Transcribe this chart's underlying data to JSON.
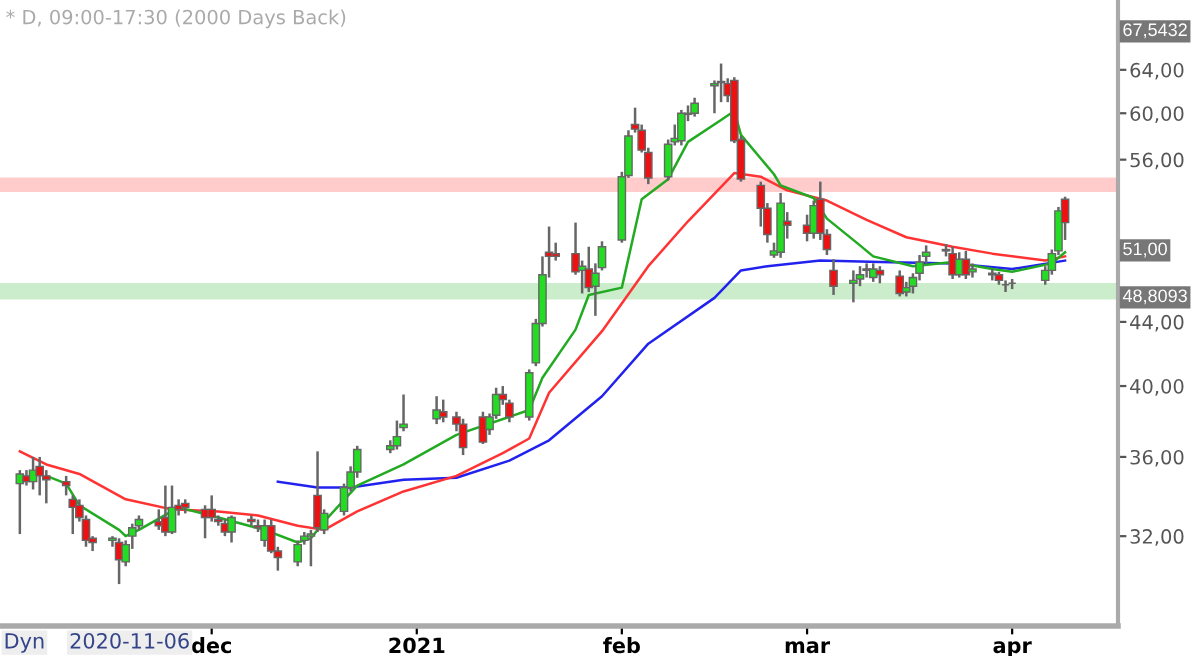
{
  "chart_data": {
    "type": "candlestick",
    "title": "* D, 09:00-17:30 (2000 Days Back)",
    "log": "y",
    "x": [
      "2020-11-02",
      "2020-11-03",
      "2020-11-04",
      "2020-11-05",
      "2020-11-06",
      "2020-11-09",
      "2020-11-10",
      "2020-11-11",
      "2020-11-12",
      "2020-11-13",
      "2020-11-16",
      "2020-11-17",
      "2020-11-18",
      "2020-11-19",
      "2020-11-20",
      "2020-11-23",
      "2020-11-24",
      "2020-11-25",
      "2020-11-26",
      "2020-11-27",
      "2020-11-30",
      "2020-12-01",
      "2020-12-02",
      "2020-12-03",
      "2020-12-04",
      "2020-12-07",
      "2020-12-08",
      "2020-12-09",
      "2020-12-10",
      "2020-12-11",
      "2020-12-14",
      "2020-12-15",
      "2020-12-16",
      "2020-12-17",
      "2020-12-18",
      "2020-12-21",
      "2020-12-22",
      "2020-12-23",
      "2020-12-28",
      "2020-12-29",
      "2020-12-30",
      "2021-01-04",
      "2021-01-05",
      "2021-01-07",
      "2021-01-08",
      "2021-01-11",
      "2021-01-12",
      "2021-01-13",
      "2021-01-14",
      "2021-01-15",
      "2021-01-18",
      "2021-01-19",
      "2021-01-20",
      "2021-01-21",
      "2021-01-22",
      "2021-01-25",
      "2021-01-26",
      "2021-01-27",
      "2021-01-28",
      "2021-01-29",
      "2021-02-01",
      "2021-02-02",
      "2021-02-03",
      "2021-02-04",
      "2021-02-05",
      "2021-02-08",
      "2021-02-09",
      "2021-02-10",
      "2021-02-11",
      "2021-02-12",
      "2021-02-15",
      "2021-02-16",
      "2021-02-17",
      "2021-02-18",
      "2021-02-19",
      "2021-02-22",
      "2021-02-23",
      "2021-02-24",
      "2021-02-25",
      "2021-02-26",
      "2021-03-01",
      "2021-03-02",
      "2021-03-03",
      "2021-03-04",
      "2021-03-05",
      "2021-03-08",
      "2021-03-09",
      "2021-03-10",
      "2021-03-11",
      "2021-03-12",
      "2021-03-15",
      "2021-03-16",
      "2021-03-17",
      "2021-03-18",
      "2021-03-19",
      "2021-03-22",
      "2021-03-23",
      "2021-03-24",
      "2021-03-25",
      "2021-03-26",
      "2021-03-29",
      "2021-03-30",
      "2021-03-31",
      "2021-04-01",
      "2021-04-06",
      "2021-04-07",
      "2021-04-08",
      "2021-04-09"
    ],
    "ohlc": [
      [
        34.6,
        35.3,
        32.1,
        35.1
      ],
      [
        35.0,
        35.3,
        34.5,
        34.7
      ],
      [
        34.7,
        36.0,
        34.3,
        35.3
      ],
      [
        35.5,
        36.0,
        34.0,
        35.0
      ],
      [
        35.0,
        35.3,
        33.6,
        34.8
      ],
      [
        34.7,
        35.0,
        34.0,
        34.5
      ],
      [
        33.8,
        34.0,
        32.1,
        33.4
      ],
      [
        33.5,
        33.8,
        32.7,
        32.9
      ],
      [
        32.8,
        33.0,
        31.5,
        31.8
      ],
      [
        31.9,
        32.0,
        31.3,
        31.7
      ],
      [
        31.8,
        32.0,
        31.5,
        31.9
      ],
      [
        31.7,
        31.9,
        29.8,
        30.9
      ],
      [
        30.8,
        31.8,
        30.6,
        31.6
      ],
      [
        32.0,
        32.6,
        31.4,
        32.4
      ],
      [
        32.5,
        33.0,
        32.3,
        32.8
      ],
      [
        32.7,
        33.3,
        32.3,
        32.5
      ],
      [
        32.9,
        34.5,
        32.0,
        32.2
      ],
      [
        32.2,
        34.5,
        32.1,
        33.4
      ],
      [
        33.5,
        33.8,
        33.0,
        33.3
      ],
      [
        33.6,
        33.8,
        33.1,
        33.4
      ],
      [
        33.3,
        33.5,
        31.9,
        32.9
      ],
      [
        33.3,
        34.0,
        32.7,
        32.9
      ],
      [
        32.8,
        33.0,
        32.5,
        32.7
      ],
      [
        32.6,
        32.8,
        32.0,
        32.2
      ],
      [
        32.2,
        33.0,
        31.7,
        32.9
      ],
      [
        32.8,
        33.0,
        32.5,
        32.7
      ],
      [
        32.5,
        32.8,
        32.2,
        32.4
      ],
      [
        31.8,
        32.8,
        31.5,
        32.5
      ],
      [
        32.5,
        32.8,
        31.2,
        31.3
      ],
      [
        31.3,
        31.5,
        30.4,
        31.0
      ],
      [
        30.8,
        31.8,
        30.6,
        31.6
      ],
      [
        31.8,
        32.2,
        31.6,
        32.0
      ],
      [
        32.0,
        32.3,
        30.6,
        32.1
      ],
      [
        34.0,
        36.3,
        32.2,
        32.4
      ],
      [
        32.3,
        33.3,
        32.1,
        33.1
      ],
      [
        33.2,
        34.6,
        33.0,
        34.4
      ],
      [
        34.4,
        35.5,
        34.2,
        35.2
      ],
      [
        35.2,
        36.6,
        34.9,
        36.4
      ],
      [
        36.4,
        36.9,
        36.2,
        36.6
      ],
      [
        36.6,
        38.0,
        36.4,
        37.1
      ],
      [
        37.6,
        39.5,
        37.4,
        37.8
      ],
      [
        38.1,
        39.4,
        37.8,
        38.6
      ],
      [
        38.5,
        39.2,
        37.9,
        38.2
      ],
      [
        38.2,
        38.5,
        37.4,
        37.8
      ],
      [
        37.8,
        38.1,
        36.1,
        36.5
      ],
      [
        38.2,
        38.5,
        36.7,
        36.8
      ],
      [
        37.5,
        38.4,
        37.2,
        38.2
      ],
      [
        38.3,
        39.9,
        38.1,
        39.5
      ],
      [
        39.5,
        40.0,
        38.9,
        39.2
      ],
      [
        39.0,
        39.2,
        37.9,
        38.2
      ],
      [
        38.2,
        41.0,
        38.0,
        40.8
      ],
      [
        41.4,
        44.2,
        41.2,
        43.9
      ],
      [
        43.9,
        48.5,
        43.7,
        47.2
      ],
      [
        48.8,
        50.7,
        47.0,
        48.5
      ],
      [
        48.7,
        49.5,
        48.2,
        48.5
      ],
      [
        48.7,
        51.0,
        47.2,
        47.4
      ],
      [
        47.5,
        48.2,
        45.9,
        47.8
      ],
      [
        47.6,
        49.2,
        46.0,
        46.3
      ],
      [
        46.4,
        48.0,
        44.4,
        47.3
      ],
      [
        47.7,
        49.6,
        47.5,
        49.2
      ],
      [
        49.7,
        55.0,
        49.5,
        54.6
      ],
      [
        54.7,
        58.5,
        54.5,
        58.0
      ],
      [
        59.0,
        60.5,
        58.3,
        58.6
      ],
      [
        58.5,
        59.0,
        56.6,
        56.8
      ],
      [
        56.6,
        57.0,
        54.0,
        54.5
      ],
      [
        54.6,
        57.7,
        54.3,
        57.3
      ],
      [
        57.5,
        59.0,
        57.2,
        57.8
      ],
      [
        57.6,
        60.3,
        57.2,
        60.0
      ],
      [
        59.9,
        60.7,
        59.3,
        60.0
      ],
      [
        60.0,
        61.4,
        59.7,
        60.9
      ],
      [
        62.5,
        63.0,
        60.0,
        62.7
      ],
      [
        62.9,
        64.6,
        61.0,
        62.8
      ],
      [
        62.7,
        63.2,
        61.0,
        61.6
      ],
      [
        63.0,
        63.3,
        57.4,
        57.6
      ],
      [
        57.7,
        58.0,
        54.2,
        54.4
      ],
      [
        53.9,
        54.2,
        50.7,
        52.1
      ],
      [
        52.1,
        52.5,
        49.5,
        50.1
      ],
      [
        48.6,
        49.5,
        48.4,
        48.9
      ],
      [
        48.8,
        53.3,
        48.4,
        52.5
      ],
      [
        51.1,
        51.8,
        49.8,
        50.8
      ],
      [
        50.8,
        51.6,
        49.6,
        50.2
      ],
      [
        50.2,
        52.7,
        49.8,
        52.3
      ],
      [
        52.8,
        54.2,
        49.7,
        50.2
      ],
      [
        50.1,
        50.5,
        48.6,
        49.0
      ],
      [
        47.5,
        48.3,
        45.8,
        46.4
      ],
      [
        46.6,
        47.5,
        45.3,
        46.8
      ],
      [
        46.9,
        47.8,
        46.4,
        47.2
      ],
      [
        47.5,
        48.0,
        47.0,
        47.6
      ],
      [
        47.0,
        48.0,
        46.7,
        47.6
      ],
      [
        47.5,
        47.8,
        46.6,
        47.2
      ],
      [
        47.1,
        47.5,
        45.7,
        45.9
      ],
      [
        46.0,
        46.7,
        45.7,
        46.3
      ],
      [
        46.4,
        47.3,
        45.9,
        47.0
      ],
      [
        47.3,
        48.6,
        46.8,
        48.1
      ],
      [
        48.5,
        49.3,
        48.0,
        48.8
      ],
      [
        48.9,
        49.4,
        48.5,
        49.0
      ],
      [
        48.7,
        49.2,
        46.9,
        47.2
      ],
      [
        47.2,
        48.8,
        47.0,
        48.3
      ],
      [
        48.3,
        48.9,
        46.9,
        47.2
      ],
      [
        47.4,
        48.0,
        47.0,
        47.6
      ],
      [
        47.3,
        47.6,
        46.8,
        47.2
      ],
      [
        47.2,
        47.4,
        46.5,
        46.8
      ],
      [
        46.5,
        46.8,
        46.0,
        46.5
      ],
      [
        46.6,
        46.9,
        46.2,
        46.6
      ],
      [
        46.8,
        47.8,
        46.5,
        47.5
      ],
      [
        47.5,
        49.0,
        47.2,
        48.7
      ],
      [
        48.9,
        52.2,
        48.6,
        51.9
      ],
      [
        52.8,
        53.0,
        49.7,
        51.0
      ]
    ],
    "colors": [
      "#22dd22",
      "#ee1111",
      "#22dd22",
      "#ee1111",
      "#ee1111",
      "#ee1111",
      "#ee1111",
      "#ee1111",
      "#ee1111",
      "#ee1111",
      "#22dd22",
      "#ee1111",
      "#22dd22",
      "#22dd22",
      "#22dd22",
      "#ee1111",
      "#ee1111",
      "#22dd22",
      "#ee1111",
      "#ee1111",
      "#ee1111",
      "#ee1111",
      "#ee1111",
      "#ee1111",
      "#22dd22",
      "#ee1111",
      "#ee1111",
      "#22dd22",
      "#ee1111",
      "#ee1111",
      "#22dd22",
      "#22dd22",
      "#22dd22",
      "#ee1111",
      "#22dd22",
      "#22dd22",
      "#22dd22",
      "#22dd22",
      "#22dd22",
      "#22dd22",
      "#22dd22",
      "#22dd22",
      "#ee1111",
      "#ee1111",
      "#ee1111",
      "#ee1111",
      "#22dd22",
      "#22dd22",
      "#ee1111",
      "#ee1111",
      "#22dd22",
      "#22dd22",
      "#22dd22",
      "#ee1111",
      "#ee1111",
      "#ee1111",
      "#22dd22",
      "#ee1111",
      "#22dd22",
      "#22dd22",
      "#22dd22",
      "#22dd22",
      "#ee1111",
      "#ee1111",
      "#ee1111",
      "#22dd22",
      "#22dd22",
      "#22dd22",
      "#22dd22",
      "#22dd22",
      "#22dd22",
      "#ee1111",
      "#ee1111",
      "#ee1111",
      "#ee1111",
      "#ee1111",
      "#ee1111",
      "#22dd22",
      "#22dd22",
      "#ee1111",
      "#ee1111",
      "#22dd22",
      "#ee1111",
      "#ee1111",
      "#ee1111",
      "#22dd22",
      "#22dd22",
      "#22dd22",
      "#22dd22",
      "#ee1111",
      "#ee1111",
      "#22dd22",
      "#22dd22",
      "#22dd22",
      "#22dd22",
      "#22dd22",
      "#ee1111",
      "#22dd22",
      "#ee1111",
      "#22dd22",
      "#ee1111",
      "#ee1111",
      "#666666",
      "#666666",
      "#22dd22",
      "#22dd22",
      "#22dd22",
      "#ee1111"
    ],
    "series": [
      {
        "type": "line",
        "color": "#2222ee",
        "x": [
          "2020-12-11",
          "2020-12-17",
          "2020-12-22",
          "2020-12-30",
          "2021-01-07",
          "2021-01-15",
          "2021-01-21",
          "2021-01-29",
          "2021-02-05",
          "2021-02-15",
          "2021-02-19",
          "2021-02-23",
          "2021-03-03",
          "2021-03-12",
          "2021-03-23",
          "2021-04-01",
          "2021-04-09"
        ],
        "values": [
          34.7,
          34.4,
          34.4,
          34.8,
          34.9,
          35.8,
          36.9,
          39.4,
          42.6,
          45.6,
          47.5,
          47.8,
          48.2,
          48.1,
          48.0,
          47.6,
          48.2
        ]
      },
      {
        "type": "line",
        "color": "#ff3333",
        "x": [
          "2020-11-02",
          "2020-11-06",
          "2020-11-11",
          "2020-11-18",
          "2020-11-25",
          "2020-12-02",
          "2020-12-08",
          "2020-12-14",
          "2020-12-18",
          "2020-12-23",
          "2020-12-30",
          "2021-01-07",
          "2021-01-14",
          "2021-01-18",
          "2021-01-21",
          "2021-01-29",
          "2021-02-05",
          "2021-02-11",
          "2021-02-18",
          "2021-02-22",
          "2021-02-26",
          "2021-03-04",
          "2021-03-10",
          "2021-03-16",
          "2021-03-23",
          "2021-03-29",
          "2021-04-06",
          "2021-04-09"
        ],
        "values": [
          36.3,
          35.6,
          35.1,
          33.8,
          33.3,
          33.2,
          33.0,
          32.5,
          32.3,
          33.2,
          34.2,
          35.0,
          36.2,
          37.0,
          39.6,
          43.4,
          47.8,
          51.1,
          54.9,
          54.6,
          53.5,
          52.7,
          51.2,
          49.9,
          49.2,
          48.7,
          48.2,
          48.5
        ]
      },
      {
        "type": "line",
        "color": "#22aa22",
        "x": [
          "2020-11-06",
          "2020-11-09",
          "2020-11-11",
          "2020-11-17",
          "2020-11-18",
          "2020-11-20",
          "2020-11-26",
          "2020-12-02",
          "2020-12-09",
          "2020-12-14",
          "2020-12-16",
          "2020-12-18",
          "2020-12-23",
          "2020-12-30",
          "2021-01-07",
          "2021-01-18",
          "2021-01-20",
          "2021-01-25",
          "2021-01-27",
          "2021-02-01",
          "2021-02-04",
          "2021-02-08",
          "2021-02-11",
          "2021-02-16",
          "2021-02-18",
          "2021-02-19",
          "2021-02-24",
          "2021-02-25",
          "2021-03-02",
          "2021-03-04",
          "2021-03-09",
          "2021-03-11",
          "2021-03-17",
          "2021-03-23",
          "2021-03-29",
          "2021-04-01",
          "2021-04-07",
          "2021-04-09"
        ],
        "values": [
          35.0,
          34.6,
          33.5,
          32.3,
          32.0,
          32.3,
          33.4,
          32.9,
          32.3,
          31.7,
          31.9,
          32.7,
          34.5,
          35.6,
          37.2,
          38.6,
          40.5,
          43.5,
          45.8,
          46.3,
          52.8,
          54.4,
          57.5,
          59.4,
          60.2,
          58.1,
          54.8,
          53.9,
          52.9,
          51.3,
          49.3,
          48.5,
          47.8,
          48.1,
          47.6,
          47.4,
          48.0,
          48.8
        ]
      }
    ],
    "bands": [
      {
        "axis": "y",
        "from": 53.5,
        "to": 54.4,
        "color": "#ff9999"
      },
      {
        "axis": "y",
        "from": 45.6,
        "to": 46.5,
        "color": "#99dd99"
      }
    ],
    "xlim": [
      "2020-10-30",
      "2021-04-17"
    ],
    "ylim": [
      28,
      71
    ],
    "xticks": [
      {
        "value": "2020-12-01",
        "label": "dec"
      },
      {
        "value": "2021-01-01",
        "label": "2021"
      },
      {
        "value": "2021-02-01",
        "label": "feb"
      },
      {
        "value": "2021-03-01",
        "label": "mar"
      },
      {
        "value": "2021-04-01",
        "label": "apr"
      }
    ],
    "yticks": [
      {
        "value": 32,
        "label": "32,00"
      },
      {
        "value": 36,
        "label": "36,00"
      },
      {
        "value": 40,
        "label": "40,00"
      },
      {
        "value": 44,
        "label": "44,00"
      },
      {
        "value": 56,
        "label": "56,00"
      },
      {
        "value": 60,
        "label": "60,00"
      },
      {
        "value": 64,
        "label": "64,00"
      }
    ],
    "annotations": [
      "Dyn",
      "2020-11-06",
      "67,5432",
      "51,00",
      "48,8093"
    ]
  }
}
